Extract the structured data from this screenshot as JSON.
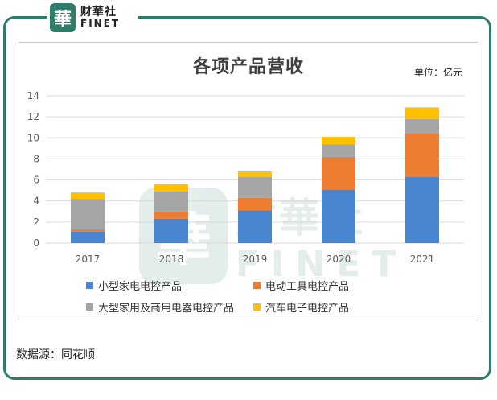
{
  "brand": {
    "seal_char": "華",
    "name_cn": "财華社",
    "name_en": "FINET"
  },
  "source_text": "数据源：同花顺",
  "chart_data": {
    "type": "bar",
    "stacked": true,
    "title": "各项产品营收",
    "unit_label": "单位：亿元",
    "categories": [
      "2017",
      "2018",
      "2019",
      "2020",
      "2021"
    ],
    "ylim": [
      0,
      14
    ],
    "yticks": [
      0,
      2,
      4,
      6,
      8,
      10,
      12,
      14
    ],
    "grid": true,
    "legend_position": "bottom",
    "series": [
      {
        "name": "小型家电电控产品",
        "color": "#4a86d0",
        "values": [
          1.1,
          2.3,
          3.1,
          5.1,
          6.3
        ]
      },
      {
        "name": "电动工具电控产品",
        "color": "#ed7d31",
        "values": [
          0.2,
          0.7,
          1.2,
          3.1,
          4.1
        ]
      },
      {
        "name": "大型家用及商用电器电控产品",
        "color": "#a5a5a5",
        "values": [
          2.9,
          1.9,
          2.0,
          1.2,
          1.4
        ]
      },
      {
        "name": "汽车电子电控产品",
        "color": "#ffc000",
        "values": [
          0.6,
          0.7,
          0.5,
          0.7,
          1.1
        ]
      }
    ]
  }
}
